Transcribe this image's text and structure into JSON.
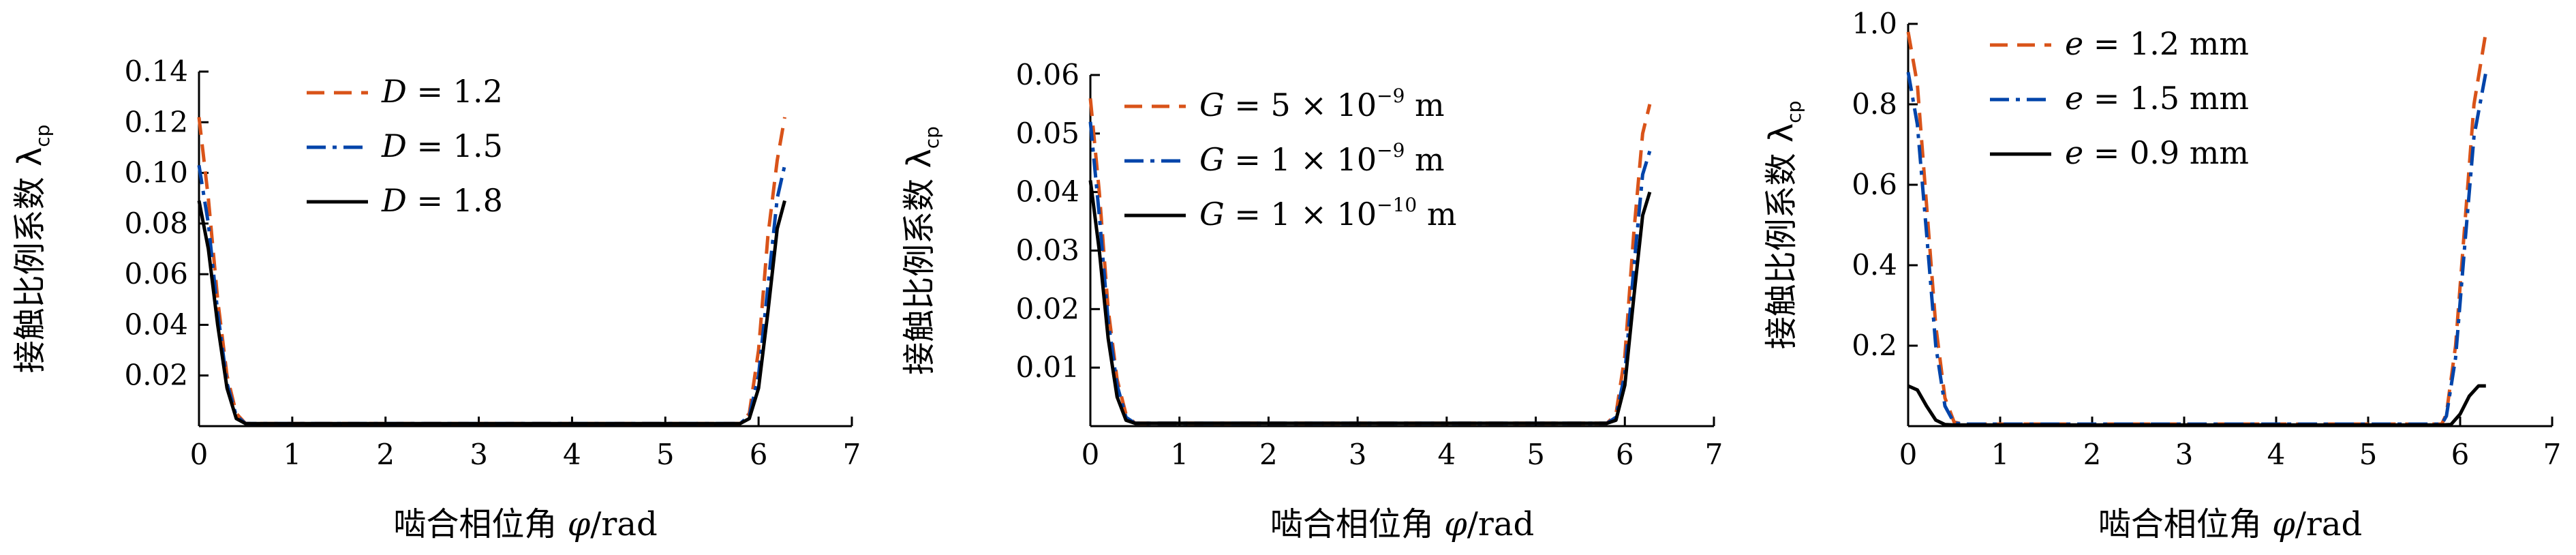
{
  "chart_data": [
    {
      "type": "line",
      "xlabel": "啮合相位角 φ/rad",
      "ylabel": "接触比例系数 λcp",
      "xlim": [
        0,
        7
      ],
      "ylim": [
        0,
        0.14
      ],
      "xticks": [
        0,
        1,
        2,
        3,
        4,
        5,
        6,
        7
      ],
      "yticks": [
        0.02,
        0.04,
        0.06,
        0.08,
        0.1,
        0.12,
        0.14
      ],
      "ytick_labels": [
        "0.02",
        "0.04",
        "0.06",
        "0.08",
        "0.10",
        "0.12",
        "0.14"
      ],
      "legend_position": "top-left",
      "series": [
        {
          "name": "D = 1.2",
          "color": "#D95319",
          "dash": "dashed",
          "points": [
            [
              0.0,
              0.122
            ],
            [
              0.1,
              0.09
            ],
            [
              0.2,
              0.05
            ],
            [
              0.3,
              0.02
            ],
            [
              0.4,
              0.005
            ],
            [
              0.5,
              0.001
            ],
            [
              0.6,
              0.001
            ],
            [
              5.8,
              0.001
            ],
            [
              5.9,
              0.005
            ],
            [
              6.0,
              0.03
            ],
            [
              6.1,
              0.075
            ],
            [
              6.2,
              0.105
            ],
            [
              6.28,
              0.122
            ]
          ]
        },
        {
          "name": "D = 1.5",
          "color": "#0044AA",
          "dash": "dashdot",
          "points": [
            [
              0.0,
              0.103
            ],
            [
              0.1,
              0.08
            ],
            [
              0.2,
              0.045
            ],
            [
              0.3,
              0.017
            ],
            [
              0.4,
              0.004
            ],
            [
              0.5,
              0.001
            ],
            [
              0.6,
              0.001
            ],
            [
              5.8,
              0.001
            ],
            [
              5.9,
              0.004
            ],
            [
              6.0,
              0.02
            ],
            [
              6.1,
              0.055
            ],
            [
              6.2,
              0.09
            ],
            [
              6.28,
              0.103
            ]
          ]
        },
        {
          "name": "D = 1.8",
          "color": "#000000",
          "dash": "solid",
          "points": [
            [
              0.0,
              0.089
            ],
            [
              0.1,
              0.07
            ],
            [
              0.2,
              0.04
            ],
            [
              0.3,
              0.015
            ],
            [
              0.4,
              0.003
            ],
            [
              0.5,
              0.001
            ],
            [
              0.6,
              0.001
            ],
            [
              5.8,
              0.001
            ],
            [
              5.9,
              0.003
            ],
            [
              6.0,
              0.015
            ],
            [
              6.1,
              0.045
            ],
            [
              6.2,
              0.078
            ],
            [
              6.28,
              0.089
            ]
          ]
        }
      ]
    },
    {
      "type": "line",
      "xlabel": "啮合相位角 φ/rad",
      "ylabel": "接触比例系数 λcp",
      "xlim": [
        0,
        7
      ],
      "ylim": [
        0,
        0.06
      ],
      "xticks": [
        0,
        1,
        2,
        3,
        4,
        5,
        6,
        7
      ],
      "yticks": [
        0.01,
        0.02,
        0.03,
        0.04,
        0.05,
        0.06
      ],
      "ytick_labels": [
        "0.01",
        "0.02",
        "0.03",
        "0.04",
        "0.05",
        "0.06"
      ],
      "legend_position": "top-left",
      "series": [
        {
          "name": "G = 5 × 10⁻⁹ m",
          "color": "#D95319",
          "dash": "dashed",
          "points": [
            [
              0.0,
              0.056
            ],
            [
              0.1,
              0.04
            ],
            [
              0.2,
              0.02
            ],
            [
              0.3,
              0.008
            ],
            [
              0.4,
              0.002
            ],
            [
              0.5,
              0.0005
            ],
            [
              0.6,
              0.0005
            ],
            [
              5.8,
              0.0005
            ],
            [
              5.9,
              0.002
            ],
            [
              6.0,
              0.012
            ],
            [
              6.1,
              0.033
            ],
            [
              6.2,
              0.05
            ],
            [
              6.28,
              0.055
            ]
          ]
        },
        {
          "name": "G = 1 × 10⁻⁹ m",
          "color": "#0044AA",
          "dash": "dashdot",
          "points": [
            [
              0.0,
              0.052
            ],
            [
              0.1,
              0.036
            ],
            [
              0.2,
              0.018
            ],
            [
              0.3,
              0.007
            ],
            [
              0.4,
              0.0015
            ],
            [
              0.5,
              0.0005
            ],
            [
              0.6,
              0.0005
            ],
            [
              5.8,
              0.0005
            ],
            [
              5.9,
              0.0015
            ],
            [
              6.0,
              0.009
            ],
            [
              6.1,
              0.027
            ],
            [
              6.2,
              0.043
            ],
            [
              6.28,
              0.047
            ]
          ]
        },
        {
          "name": "G = 1 × 10⁻¹⁰ m",
          "color": "#000000",
          "dash": "solid",
          "points": [
            [
              0.0,
              0.042
            ],
            [
              0.1,
              0.03
            ],
            [
              0.2,
              0.015
            ],
            [
              0.3,
              0.005
            ],
            [
              0.4,
              0.001
            ],
            [
              0.5,
              0.0005
            ],
            [
              0.6,
              0.0005
            ],
            [
              5.8,
              0.0005
            ],
            [
              5.9,
              0.001
            ],
            [
              6.0,
              0.007
            ],
            [
              6.1,
              0.022
            ],
            [
              6.2,
              0.036
            ],
            [
              6.28,
              0.04
            ]
          ]
        }
      ]
    },
    {
      "type": "line",
      "xlabel": "啮合相位角 φ/rad",
      "ylabel": "接触比例系数 λcp",
      "xlim": [
        0,
        7
      ],
      "ylim": [
        0,
        1.0
      ],
      "xticks": [
        0,
        1,
        2,
        3,
        4,
        5,
        6,
        7
      ],
      "yticks": [
        0.2,
        0.4,
        0.6,
        0.8,
        1.0
      ],
      "ytick_labels": [
        "0.2",
        "0.4",
        "0.6",
        "0.8",
        "1.0"
      ],
      "legend_position": "top-left",
      "series": [
        {
          "name": "e = 1.2 mm",
          "color": "#D95319",
          "dash": "dashed",
          "points": [
            [
              0.0,
              0.98
            ],
            [
              0.1,
              0.85
            ],
            [
              0.2,
              0.55
            ],
            [
              0.3,
              0.25
            ],
            [
              0.4,
              0.07
            ],
            [
              0.5,
              0.01
            ],
            [
              0.6,
              0.005
            ],
            [
              5.8,
              0.005
            ],
            [
              5.85,
              0.03
            ],
            [
              5.95,
              0.2
            ],
            [
              6.05,
              0.5
            ],
            [
              6.15,
              0.8
            ],
            [
              6.28,
              0.98
            ]
          ]
        },
        {
          "name": "e = 1.5 mm",
          "color": "#0044AA",
          "dash": "dashdot",
          "points": [
            [
              0.0,
              0.88
            ],
            [
              0.1,
              0.75
            ],
            [
              0.2,
              0.48
            ],
            [
              0.3,
              0.2
            ],
            [
              0.4,
              0.05
            ],
            [
              0.5,
              0.008
            ],
            [
              0.6,
              0.005
            ],
            [
              5.8,
              0.005
            ],
            [
              5.85,
              0.025
            ],
            [
              5.95,
              0.17
            ],
            [
              6.05,
              0.45
            ],
            [
              6.15,
              0.72
            ],
            [
              6.28,
              0.88
            ]
          ]
        },
        {
          "name": "e = 0.9 mm",
          "color": "#000000",
          "dash": "solid",
          "points": [
            [
              0.0,
              0.1
            ],
            [
              0.1,
              0.09
            ],
            [
              0.2,
              0.05
            ],
            [
              0.3,
              0.015
            ],
            [
              0.4,
              0.004
            ],
            [
              0.5,
              0.003
            ],
            [
              5.8,
              0.003
            ],
            [
              5.9,
              0.004
            ],
            [
              6.0,
              0.03
            ],
            [
              6.1,
              0.075
            ],
            [
              6.2,
              0.1
            ],
            [
              6.28,
              0.1
            ]
          ]
        }
      ]
    }
  ],
  "legends": [
    [
      {
        "var": "D",
        "text": " = 1.2"
      },
      {
        "var": "D",
        "text": " = 1.5"
      },
      {
        "var": "D",
        "text": " = 1.8"
      }
    ],
    [
      {
        "var": "G",
        "text": " = 5 × 10",
        "sup": "−9",
        "unit": " m"
      },
      {
        "var": "G",
        "text": " = 1 × 10",
        "sup": "−9",
        "unit": " m"
      },
      {
        "var": "G",
        "text": " = 1 × 10",
        "sup": "−10",
        "unit": " m"
      }
    ],
    [
      {
        "var": "e",
        "text": " = 1.2 mm"
      },
      {
        "var": "e",
        "text": " = 1.5 mm"
      },
      {
        "var": "e",
        "text": " = 0.9 mm"
      }
    ]
  ],
  "ylabel_parts": {
    "main": "接触比例系数 λ",
    "sub": "cp"
  },
  "xlabel_parts": {
    "main": "啮合相位角 ",
    "var": "φ",
    "unit": "/rad"
  }
}
